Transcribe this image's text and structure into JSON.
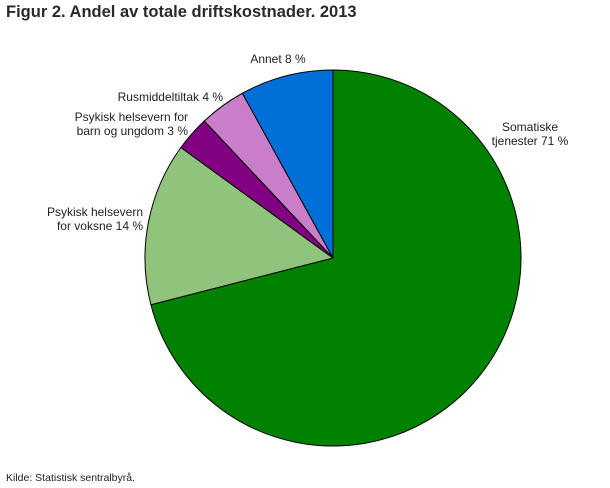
{
  "title": "Figur 2. Andel av totale driftskostnader. 2013",
  "source": "Kilde: Statistisk sentralbyrå.",
  "chart_data": {
    "type": "pie",
    "title": "Figur 2. Andel av totale driftskostnader. 2013",
    "start": "12 o'clock",
    "direction": "clockwise",
    "slices": [
      {
        "label_lines": [
          "Somatiske",
          "tjenester 71 %"
        ],
        "value": 71,
        "color": "#008200"
      },
      {
        "label_lines": [
          "Psykisk helsevern",
          "for voksne 14 %"
        ],
        "value": 14,
        "color": "#90c47c"
      },
      {
        "label_lines": [
          "Psykisk helsevern for",
          "barn og ungdom 3 %"
        ],
        "value": 3,
        "color": "#820082"
      },
      {
        "label_lines": [
          "Rusmiddeltiltak 4 %"
        ],
        "value": 4,
        "color": "#c87ec8"
      },
      {
        "label_lines": [
          "Annet 8 %"
        ],
        "value": 8,
        "color": "#0070d8"
      }
    ]
  }
}
